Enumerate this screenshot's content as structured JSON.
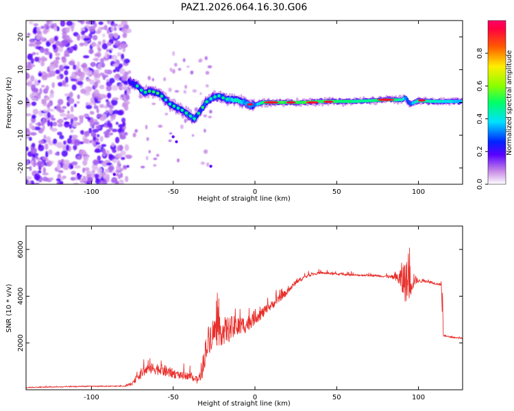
{
  "title": "PAZ1.2026.064.16.30.G06",
  "chart_data": [
    {
      "type": "heatmap",
      "name": "spectrogram",
      "title": "PAZ1.2026.064.16.30.G06",
      "xlabel": "Height of straight line (km)",
      "ylabel": "Frequency (Hz)",
      "xlim": [
        -140,
        127
      ],
      "ylim": [
        -25,
        25
      ],
      "xticks": [
        -100,
        -50,
        0,
        50,
        100
      ],
      "yticks": [
        -20,
        -10,
        0,
        10,
        20
      ],
      "xtick_labels": [
        "-100",
        "-50",
        "0",
        "50",
        "100"
      ],
      "ytick_labels": [
        "-20",
        "-10",
        "0",
        "10",
        "20"
      ],
      "colorbar": {
        "label": "Normalized spectral amplitude",
        "range": [
          0,
          1
        ],
        "ticks": [
          0.0,
          0.2,
          0.4,
          0.6,
          0.8
        ],
        "tick_labels": [
          "0.0",
          "0.2",
          "0.4",
          "0.6",
          "0.8"
        ]
      },
      "noise_region_x": [
        -140,
        -77
      ],
      "ridge": {
        "x": [
          -77,
          -72,
          -68,
          -64,
          -60,
          -56,
          -52,
          -48,
          -44,
          -40,
          -37,
          -34,
          -30,
          -26,
          -22,
          -18,
          -14,
          -10,
          -6,
          -3,
          0,
          5,
          10,
          20,
          30,
          40,
          50,
          60,
          70,
          80,
          90,
          92,
          95,
          100,
          110,
          120,
          127
        ],
        "freq": [
          6.5,
          5.0,
          3.0,
          3.5,
          3.0,
          1.5,
          -0.5,
          -1.5,
          -2.5,
          -4.0,
          -5.0,
          -3.0,
          0.0,
          1.5,
          2.0,
          1.0,
          1.0,
          0.5,
          0.0,
          -1.0,
          -0.8,
          0.0,
          0.0,
          0.0,
          0.0,
          0.3,
          0.3,
          0.3,
          0.5,
          0.8,
          0.8,
          1.5,
          -0.5,
          0.5,
          0.3,
          0.3,
          0.3
        ],
        "amplitude": [
          0.4,
          0.45,
          0.5,
          0.45,
          0.5,
          0.45,
          0.45,
          0.5,
          0.45,
          0.55,
          0.5,
          0.45,
          0.5,
          0.55,
          0.5,
          0.55,
          0.7,
          0.8,
          0.6,
          0.6,
          0.55,
          0.9,
          0.95,
          0.95,
          0.95,
          0.9,
          0.9,
          0.85,
          0.85,
          0.9,
          0.8,
          0.6,
          0.5,
          0.85,
          0.75,
          0.7,
          0.65
        ]
      }
    },
    {
      "type": "line",
      "name": "snr",
      "xlabel": "Height of straight line (km)",
      "ylabel": "SNR (10 * v/v)",
      "xlim": [
        -140,
        127
      ],
      "ylim": [
        0,
        7000
      ],
      "xticks": [
        -100,
        -50,
        0,
        50,
        100
      ],
      "yticks": [
        2000,
        4000,
        6000
      ],
      "xtick_labels": [
        "-100",
        "-50",
        "0",
        "50",
        "100"
      ],
      "ytick_labels": [
        "2000",
        "4000",
        "6000"
      ],
      "color": "#e8302c",
      "series": [
        {
          "name": "SNR envelope",
          "x": [
            -140,
            -120,
            -100,
            -80,
            -75,
            -70,
            -65,
            -60,
            -55,
            -50,
            -45,
            -40,
            -35,
            -32,
            -30,
            -28,
            -25,
            -20,
            -15,
            -10,
            -5,
            0,
            5,
            10,
            15,
            20,
            25,
            30,
            35,
            40,
            50,
            60,
            70,
            80,
            85,
            88,
            90,
            92,
            94,
            96,
            98,
            100,
            105,
            110,
            114,
            115,
            116,
            120,
            127
          ],
          "y": [
            100,
            120,
            150,
            150,
            250,
            700,
            900,
            900,
            800,
            700,
            600,
            600,
            400,
            800,
            1800,
            2200,
            2500,
            2500,
            2600,
            2700,
            2800,
            3100,
            3300,
            3600,
            3900,
            4200,
            4600,
            4800,
            4950,
            5000,
            4950,
            4900,
            4900,
            4850,
            4800,
            4750,
            4700,
            4650,
            4600,
            4700,
            4700,
            4650,
            4650,
            4550,
            4500,
            2300,
            2300,
            2250,
            2200
          ],
          "noise": [
            40,
            40,
            40,
            40,
            120,
            400,
            450,
            500,
            500,
            400,
            300,
            300,
            300,
            600,
            1200,
            1300,
            1300,
            1200,
            1100,
            900,
            700,
            600,
            450,
            350,
            300,
            250,
            200,
            150,
            120,
            100,
            100,
            90,
            90,
            100,
            200,
            600,
            1600,
            1800,
            1800,
            1200,
            400,
            150,
            120,
            100,
            100,
            60,
            60,
            60,
            60
          ]
        }
      ]
    }
  ]
}
